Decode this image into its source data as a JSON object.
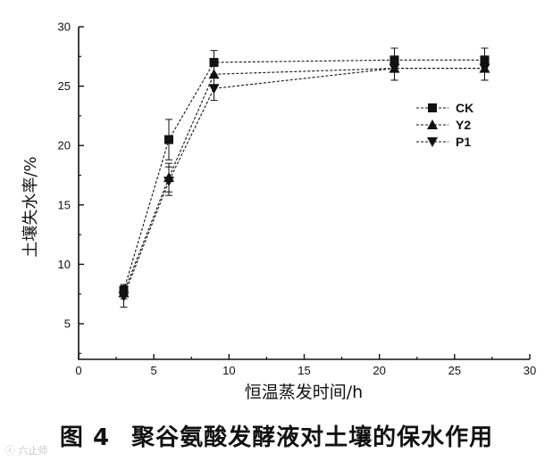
{
  "chart_data": {
    "type": "line",
    "x": [
      3,
      6,
      9,
      21,
      27
    ],
    "series": [
      {
        "name": "CK",
        "marker": "square",
        "values": [
          7.8,
          20.5,
          27.0,
          27.2,
          27.2
        ],
        "err": [
          0.5,
          1.7,
          1.0,
          1.0,
          1.0
        ]
      },
      {
        "name": "Y2",
        "marker": "triangle-up",
        "values": [
          7.6,
          17.3,
          26.0,
          26.5,
          26.5
        ],
        "err": [
          0.5,
          1.2,
          1.0,
          1.0,
          1.0
        ]
      },
      {
        "name": "P1",
        "marker": "triangle-down",
        "values": [
          7.3,
          17.0,
          24.8,
          26.5,
          26.5
        ],
        "err": [
          0.9,
          1.2,
          1.0,
          1.0,
          1.0
        ]
      }
    ],
    "xlabel": "恒温蒸发时间/h",
    "ylabel": "土壤失水率/%",
    "xlim": [
      0,
      30
    ],
    "ylim": [
      2,
      30
    ],
    "xticks": [
      0,
      5,
      10,
      15,
      20,
      25,
      30
    ],
    "yticks": [
      5,
      10,
      15,
      20,
      25,
      30
    ],
    "grid": false,
    "legend_position": "top-right",
    "line_color": "#111111"
  },
  "caption": {
    "figure_number": "图 4",
    "title": "聚谷氨酸发酵液对土壤的保水作用"
  },
  "watermark": "ⓒ 六止师"
}
